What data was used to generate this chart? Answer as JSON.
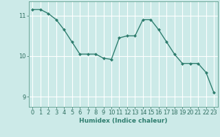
{
  "x": [
    0,
    1,
    2,
    3,
    4,
    5,
    6,
    7,
    8,
    9,
    10,
    11,
    12,
    13,
    14,
    15,
    16,
    17,
    18,
    19,
    20,
    21,
    22,
    23
  ],
  "y": [
    11.15,
    11.15,
    11.05,
    10.9,
    10.65,
    10.35,
    10.05,
    10.05,
    10.05,
    9.95,
    9.92,
    10.45,
    10.5,
    10.5,
    10.9,
    10.9,
    10.65,
    10.35,
    10.05,
    9.82,
    9.82,
    9.82,
    9.6,
    9.1
  ],
  "line_color": "#2e7d6e",
  "marker": "D",
  "marker_size": 2.0,
  "bg_color": "#cceae8",
  "grid_color": "#ffffff",
  "xlabel": "Humidex (Indice chaleur)",
  "ylim": [
    8.75,
    11.35
  ],
  "xlim": [
    -0.5,
    23.5
  ],
  "yticks": [
    9,
    10,
    11
  ],
  "xticks": [
    0,
    1,
    2,
    3,
    4,
    5,
    6,
    7,
    8,
    9,
    10,
    11,
    12,
    13,
    14,
    15,
    16,
    17,
    18,
    19,
    20,
    21,
    22,
    23
  ],
  "xtick_labels": [
    "0",
    "1",
    "2",
    "3",
    "4",
    "5",
    "6",
    "7",
    "8",
    "9",
    "10",
    "11",
    "12",
    "13",
    "14",
    "15",
    "16",
    "17",
    "18",
    "19",
    "20",
    "21",
    "22",
    "23"
  ],
  "title_color": "#2e7d6e",
  "axis_color": "#5a9a8a",
  "tick_color": "#2e6e60",
  "label_fontsize": 6.5,
  "tick_fontsize": 6.0,
  "linewidth": 1.0
}
